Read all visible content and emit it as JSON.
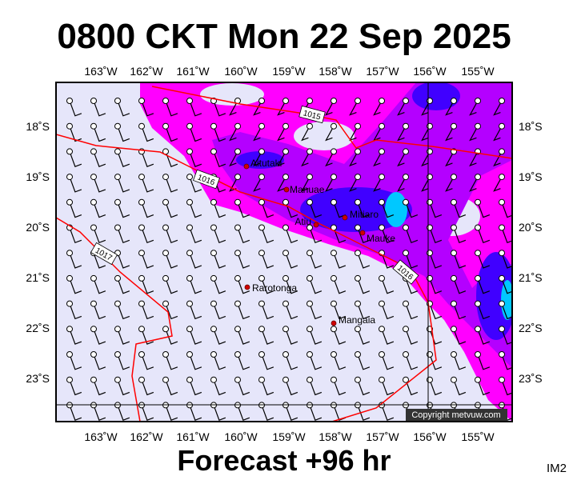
{
  "header": {
    "title": "0800 CKT Mon 22 Sep 2025"
  },
  "axes": {
    "longitudes": [
      "163˚W",
      "162˚W",
      "161˚W",
      "160˚W",
      "159˚W",
      "158˚W",
      "157˚W",
      "156˚W",
      "155˚W"
    ],
    "latitudes": [
      "18˚S",
      "19˚S",
      "20˚S",
      "21˚S",
      "22˚S",
      "23˚S"
    ]
  },
  "isobars": [
    "1015",
    "1016",
    "1017",
    "1016"
  ],
  "islands": [
    "Aitutaki",
    "Manuae",
    "Mitiaro",
    "Atiu",
    "Mauke",
    "Rarotonga",
    "Mangaia"
  ],
  "copyright": "Copyright metvuw.com",
  "footer": {
    "forecast": "Forecast +96 hr",
    "code": "IM2"
  }
}
